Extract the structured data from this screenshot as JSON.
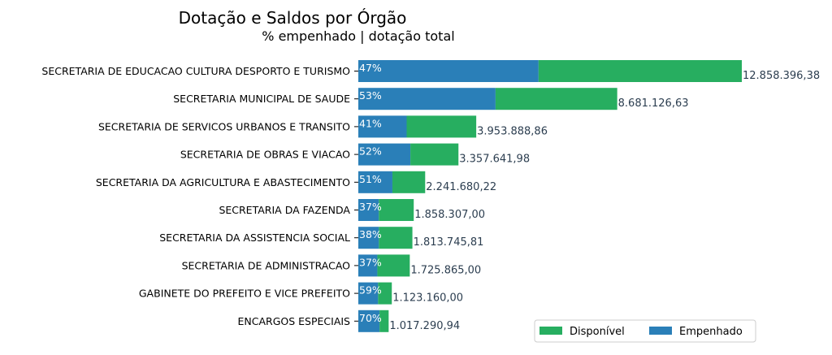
{
  "chart_data": {
    "type": "bar",
    "orientation": "horizontal",
    "stacked": true,
    "title": "Dotação e Saldos por Órgão",
    "subtitle": "% empenhado | dotação total",
    "categories": [
      "SECRETARIA DE EDUCACAO CULTURA DESPORTO E TURISMO",
      "SECRETARIA MUNICIPAL DE SAUDE",
      "SECRETARIA DE SERVICOS URBANOS E TRANSITO",
      "SECRETARIA DE OBRAS E VIACAO",
      "SECRETARIA DA AGRICULTURA E ABASTECIMENTO",
      "SECRETARIA DA FAZENDA",
      "SECRETARIA DA ASSISTENCIA SOCIAL",
      "SECRETARIA DE ADMINISTRACAO",
      "GABINETE DO PREFEITO E VICE PREFEITO",
      "ENCARGOS ESPECIAIS"
    ],
    "totals": [
      12858396.38,
      8681126.63,
      3953888.86,
      3357641.98,
      2241680.22,
      1858307.0,
      1813745.81,
      1725865.0,
      1123160.0,
      1017290.94
    ],
    "total_labels": [
      "12.858.396,38",
      "8.681.126,63",
      "3.953.888,86",
      "3.357.641,98",
      "2.241.680,22",
      "1.858.307,00",
      "1.813.745,81",
      "1.725.865,00",
      "1.123.160,00",
      "1.017.290,94"
    ],
    "pct_labels": [
      "47%",
      "53%",
      "41%",
      "52%",
      "51%",
      "37%",
      "38%",
      "37%",
      "59%",
      "70%"
    ],
    "series": [
      {
        "name": "Empenhado",
        "color": "#2a7fb8",
        "values": [
          6043446.3,
          4601000.0,
          1621094.43,
          1745973.83,
          1143256.91,
          687573.59,
          689223.41,
          638570.05,
          662664.4,
          712103.66
        ]
      },
      {
        "name": "Disponível",
        "color": "#27ae60",
        "values": [
          6814950.08,
          4080126.63,
          2332794.43,
          1611668.15,
          1098423.31,
          1170733.41,
          1124522.4,
          1087294.95,
          460495.6,
          305187.28
        ]
      }
    ],
    "legend": {
      "position": "bottom-right",
      "order": [
        "Disponível",
        "Empenhado"
      ]
    },
    "grid": false
  }
}
